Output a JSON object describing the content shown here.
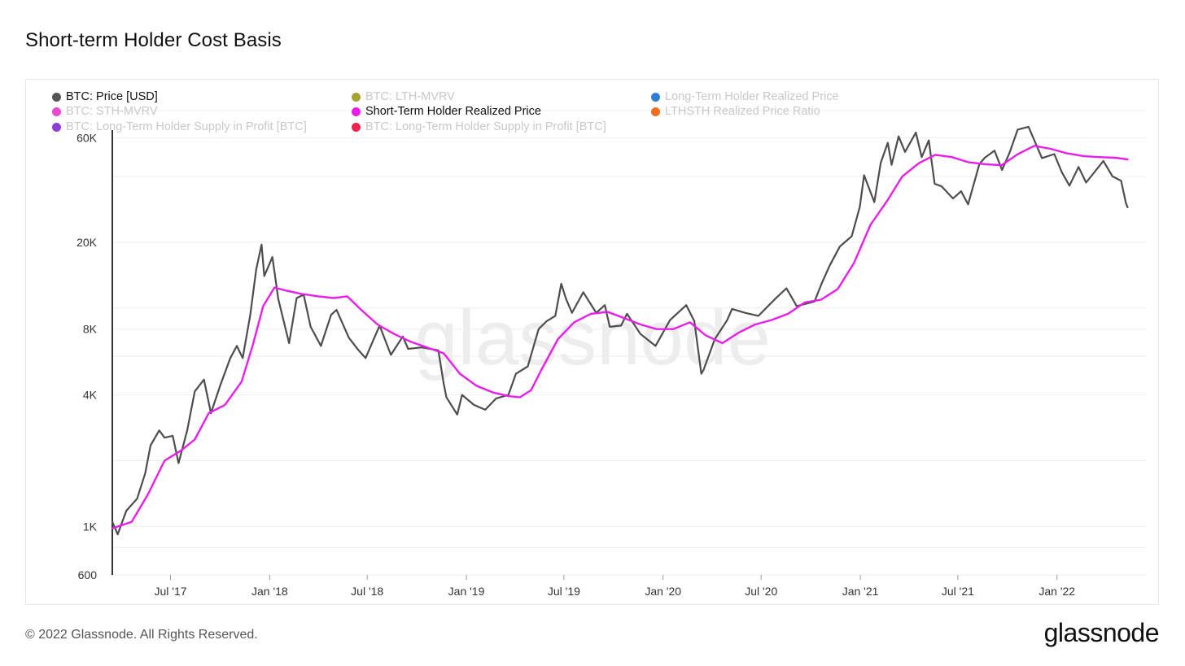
{
  "page": {
    "title": "Short-term Holder Cost Basis",
    "copyright": "© 2022 Glassnode. All Rights Reserved.",
    "brand": "glassnode",
    "watermark": "glassnode"
  },
  "legend": [
    {
      "label": "BTC: Price [USD]",
      "color": "#555555",
      "active": true
    },
    {
      "label": "BTC: LTH-MVRV",
      "color": "#a8a232",
      "active": false
    },
    {
      "label": "Long-Term Holder Realized Price",
      "color": "#2f7fd6",
      "active": false
    },
    {
      "label": "BTC: STH-MVRV",
      "color": "#e84ad0",
      "active": false
    },
    {
      "label": "Short-Term Holder Realized Price",
      "color": "#e81ee8",
      "active": true
    },
    {
      "label": "LTHSTH Realized Price Ratio",
      "color": "#f26d1d",
      "active": false
    },
    {
      "label": "BTC: Long-Term Holder Supply in Profit [BTC]",
      "color": "#8a3fd6",
      "active": false
    },
    {
      "label": "BTC: Long-Term Holder Supply in Profit [BTC]",
      "color": "#f2224f",
      "active": false
    }
  ],
  "chart_data": {
    "type": "line",
    "title": "Short-term Holder Cost Basis",
    "y_scale": "log",
    "ylim": [
      600,
      100000
    ],
    "y_ticks": [
      {
        "value": 600,
        "label": "600"
      },
      {
        "value": 1000,
        "label": "1K"
      },
      {
        "value": 4000,
        "label": "4K"
      },
      {
        "value": 8000,
        "label": "8K"
      },
      {
        "value": 20000,
        "label": "20K"
      },
      {
        "value": 60000,
        "label": "60K"
      }
    ],
    "x_range": [
      "2017-03-15",
      "2022-06-15"
    ],
    "x_ticks": [
      {
        "date": "2017-07-01",
        "label": "Jul '17"
      },
      {
        "date": "2018-01-01",
        "label": "Jan '18"
      },
      {
        "date": "2018-07-01",
        "label": "Jul '18"
      },
      {
        "date": "2019-01-01",
        "label": "Jan '19"
      },
      {
        "date": "2019-07-01",
        "label": "Jul '19"
      },
      {
        "date": "2020-01-01",
        "label": "Jan '20"
      },
      {
        "date": "2020-07-01",
        "label": "Jul '20"
      },
      {
        "date": "2021-01-01",
        "label": "Jan '21"
      },
      {
        "date": "2021-07-01",
        "label": "Jul '21"
      },
      {
        "date": "2022-01-01",
        "label": "Jan '22"
      }
    ],
    "series": [
      {
        "name": "BTC: Price [USD]",
        "color": "#4d4d4d",
        "points": [
          [
            "2017-03-15",
            1050
          ],
          [
            "2017-03-25",
            920
          ],
          [
            "2017-04-10",
            1180
          ],
          [
            "2017-04-30",
            1340
          ],
          [
            "2017-05-15",
            1750
          ],
          [
            "2017-05-25",
            2350
          ],
          [
            "2017-06-10",
            2750
          ],
          [
            "2017-06-20",
            2550
          ],
          [
            "2017-07-05",
            2600
          ],
          [
            "2017-07-16",
            1950
          ],
          [
            "2017-08-01",
            2750
          ],
          [
            "2017-08-15",
            4150
          ],
          [
            "2017-09-01",
            4700
          ],
          [
            "2017-09-14",
            3300
          ],
          [
            "2017-10-01",
            4400
          ],
          [
            "2017-10-20",
            5900
          ],
          [
            "2017-11-01",
            6700
          ],
          [
            "2017-11-12",
            5900
          ],
          [
            "2017-11-26",
            9300
          ],
          [
            "2017-12-07",
            15000
          ],
          [
            "2017-12-17",
            19500
          ],
          [
            "2017-12-22",
            14000
          ],
          [
            "2018-01-06",
            17100
          ],
          [
            "2018-01-17",
            11000
          ],
          [
            "2018-02-06",
            6900
          ],
          [
            "2018-02-20",
            11100
          ],
          [
            "2018-03-05",
            11500
          ],
          [
            "2018-03-18",
            8200
          ],
          [
            "2018-04-06",
            6700
          ],
          [
            "2018-04-25",
            9300
          ],
          [
            "2018-05-05",
            9800
          ],
          [
            "2018-05-28",
            7300
          ],
          [
            "2018-06-15",
            6400
          ],
          [
            "2018-06-28",
            5900
          ],
          [
            "2018-07-24",
            8300
          ],
          [
            "2018-08-14",
            6100
          ],
          [
            "2018-09-05",
            7400
          ],
          [
            "2018-09-15",
            6500
          ],
          [
            "2018-10-10",
            6600
          ],
          [
            "2018-11-10",
            6400
          ],
          [
            "2018-11-20",
            4500
          ],
          [
            "2018-11-25",
            3900
          ],
          [
            "2018-12-15",
            3250
          ],
          [
            "2018-12-24",
            4000
          ],
          [
            "2019-01-15",
            3600
          ],
          [
            "2019-02-05",
            3420
          ],
          [
            "2019-02-25",
            3850
          ],
          [
            "2019-03-20",
            4000
          ],
          [
            "2019-04-03",
            5000
          ],
          [
            "2019-04-25",
            5400
          ],
          [
            "2019-05-15",
            8000
          ],
          [
            "2019-05-30",
            8700
          ],
          [
            "2019-06-15",
            9200
          ],
          [
            "2019-06-26",
            12900
          ],
          [
            "2019-07-05",
            11000
          ],
          [
            "2019-07-16",
            9500
          ],
          [
            "2019-08-06",
            11800
          ],
          [
            "2019-08-30",
            9500
          ],
          [
            "2019-09-15",
            10300
          ],
          [
            "2019-09-24",
            8200
          ],
          [
            "2019-10-15",
            8300
          ],
          [
            "2019-10-26",
            9400
          ],
          [
            "2019-11-20",
            7600
          ],
          [
            "2019-12-18",
            6700
          ],
          [
            "2020-01-14",
            8800
          ],
          [
            "2020-02-13",
            10300
          ],
          [
            "2020-02-28",
            8700
          ],
          [
            "2020-03-12",
            5000
          ],
          [
            "2020-03-16",
            5200
          ],
          [
            "2020-04-06",
            7200
          ],
          [
            "2020-04-29",
            8800
          ],
          [
            "2020-05-08",
            9900
          ],
          [
            "2020-06-01",
            9500
          ],
          [
            "2020-06-26",
            9200
          ],
          [
            "2020-07-27",
            11000
          ],
          [
            "2020-08-17",
            12300
          ],
          [
            "2020-09-05",
            10200
          ],
          [
            "2020-10-08",
            10700
          ],
          [
            "2020-10-21",
            12900
          ],
          [
            "2020-11-05",
            15600
          ],
          [
            "2020-11-24",
            19100
          ],
          [
            "2020-12-16",
            21300
          ],
          [
            "2020-12-31",
            29000
          ],
          [
            "2021-01-08",
            40500
          ],
          [
            "2021-01-27",
            30500
          ],
          [
            "2021-02-08",
            46200
          ],
          [
            "2021-02-21",
            57000
          ],
          [
            "2021-02-28",
            45200
          ],
          [
            "2021-03-13",
            61000
          ],
          [
            "2021-03-25",
            51800
          ],
          [
            "2021-04-14",
            63500
          ],
          [
            "2021-04-25",
            49000
          ],
          [
            "2021-05-08",
            58500
          ],
          [
            "2021-05-19",
            37000
          ],
          [
            "2021-06-01",
            36000
          ],
          [
            "2021-06-22",
            31700
          ],
          [
            "2021-07-07",
            34200
          ],
          [
            "2021-07-20",
            29800
          ],
          [
            "2021-08-10",
            45600
          ],
          [
            "2021-08-20",
            48700
          ],
          [
            "2021-09-07",
            52500
          ],
          [
            "2021-09-21",
            42800
          ],
          [
            "2021-10-05",
            51400
          ],
          [
            "2021-10-20",
            65500
          ],
          [
            "2021-11-09",
            67500
          ],
          [
            "2021-11-26",
            54000
          ],
          [
            "2021-12-04",
            48500
          ],
          [
            "2021-12-27",
            50600
          ],
          [
            "2022-01-10",
            41800
          ],
          [
            "2022-01-24",
            36300
          ],
          [
            "2022-02-10",
            44200
          ],
          [
            "2022-02-24",
            37500
          ],
          [
            "2022-03-28",
            47100
          ],
          [
            "2022-04-14",
            40000
          ],
          [
            "2022-04-30",
            38200
          ],
          [
            "2022-05-09",
            30100
          ],
          [
            "2022-05-12",
            28900
          ]
        ]
      },
      {
        "name": "Short-Term Holder Realized Price",
        "color": "#e81ee8",
        "points": [
          [
            "2017-03-15",
            980
          ],
          [
            "2017-04-20",
            1050
          ],
          [
            "2017-05-20",
            1400
          ],
          [
            "2017-06-20",
            2000
          ],
          [
            "2017-07-20",
            2220
          ],
          [
            "2017-08-15",
            2500
          ],
          [
            "2017-09-10",
            3300
          ],
          [
            "2017-10-10",
            3600
          ],
          [
            "2017-11-10",
            4600
          ],
          [
            "2017-12-01",
            6800
          ],
          [
            "2017-12-20",
            10200
          ],
          [
            "2018-01-10",
            12400
          ],
          [
            "2018-02-01",
            12000
          ],
          [
            "2018-03-01",
            11600
          ],
          [
            "2018-04-01",
            11300
          ],
          [
            "2018-04-30",
            11100
          ],
          [
            "2018-05-25",
            11300
          ],
          [
            "2018-06-20",
            9800
          ],
          [
            "2018-07-20",
            8400
          ],
          [
            "2018-08-20",
            7600
          ],
          [
            "2018-09-20",
            7000
          ],
          [
            "2018-10-20",
            6600
          ],
          [
            "2018-11-20",
            6200
          ],
          [
            "2018-12-20",
            5000
          ],
          [
            "2019-01-20",
            4400
          ],
          [
            "2019-02-20",
            4100
          ],
          [
            "2019-03-20",
            3950
          ],
          [
            "2019-04-10",
            3900
          ],
          [
            "2019-05-01",
            4200
          ],
          [
            "2019-05-20",
            5200
          ],
          [
            "2019-06-20",
            7200
          ],
          [
            "2019-07-20",
            8600
          ],
          [
            "2019-08-20",
            9400
          ],
          [
            "2019-09-20",
            9600
          ],
          [
            "2019-10-20",
            9000
          ],
          [
            "2019-11-20",
            8400
          ],
          [
            "2019-12-20",
            8000
          ],
          [
            "2020-01-20",
            8000
          ],
          [
            "2020-02-20",
            8600
          ],
          [
            "2020-03-20",
            7500
          ],
          [
            "2020-04-20",
            6900
          ],
          [
            "2020-05-20",
            7700
          ],
          [
            "2020-06-20",
            8400
          ],
          [
            "2020-07-20",
            8800
          ],
          [
            "2020-08-20",
            9400
          ],
          [
            "2020-09-20",
            10600
          ],
          [
            "2020-10-20",
            10900
          ],
          [
            "2020-11-20",
            12200
          ],
          [
            "2020-12-20",
            16000
          ],
          [
            "2021-01-20",
            24000
          ],
          [
            "2021-02-20",
            31000
          ],
          [
            "2021-03-20",
            40000
          ],
          [
            "2021-04-20",
            46000
          ],
          [
            "2021-05-20",
            50200
          ],
          [
            "2021-06-20",
            49000
          ],
          [
            "2021-07-20",
            46500
          ],
          [
            "2021-08-20",
            45500
          ],
          [
            "2021-09-20",
            45000
          ],
          [
            "2021-10-20",
            50500
          ],
          [
            "2021-11-20",
            55200
          ],
          [
            "2021-12-20",
            53500
          ],
          [
            "2022-01-20",
            51000
          ],
          [
            "2022-02-20",
            49500
          ],
          [
            "2022-03-20",
            49000
          ],
          [
            "2022-04-20",
            48700
          ],
          [
            "2022-05-12",
            47800
          ]
        ]
      }
    ]
  }
}
